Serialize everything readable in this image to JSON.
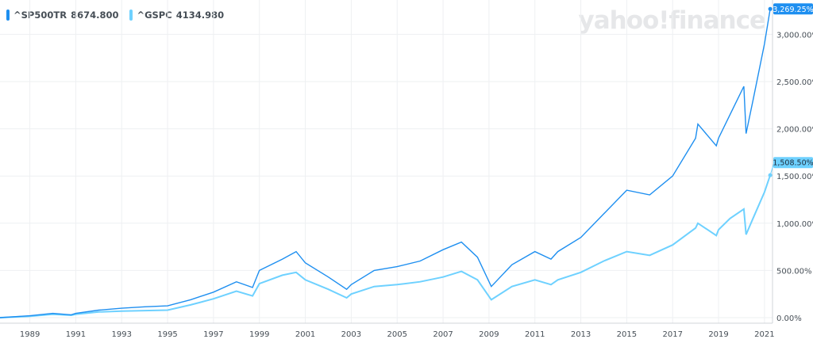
{
  "logo": "yahoo!finance",
  "chart_data": {
    "type": "line",
    "xlabel": "",
    "ylabel": "",
    "x_ticks": [
      "1989",
      "1991",
      "1993",
      "1995",
      "1997",
      "1999",
      "2001",
      "2003",
      "2005",
      "2007",
      "2009",
      "2011",
      "2013",
      "2015",
      "2017",
      "2019",
      "2021"
    ],
    "y_ticks": [
      "0.00%",
      "500.00%",
      "1,000.00%",
      "1,500.00%",
      "2,000.00%",
      "2,500.00%",
      "3,000.00%"
    ],
    "y_tick_values": [
      0,
      500,
      1000,
      1500,
      2000,
      2500,
      3000
    ],
    "xlim": [
      1987.7,
      2021.35
    ],
    "ylim": [
      -60,
      3350
    ],
    "grid": true,
    "legend_placement": "top-left",
    "series": [
      {
        "name": "^SP500TR",
        "legend_value": "8674.800",
        "end_label": "3,269.25%",
        "color": "#1e8ff0",
        "x": [
          1987.7,
          1989,
          1990,
          1990.8,
          1991,
          1992,
          1993,
          1994,
          1995,
          1996,
          1997,
          1998,
          1998.7,
          1999,
          2000,
          2000.6,
          2001,
          2002,
          2002.8,
          2003,
          2004,
          2005,
          2006,
          2007,
          2007.8,
          2008.5,
          2009.1,
          2010,
          2011,
          2011.7,
          2012,
          2013,
          2014,
          2015,
          2016,
          2017,
          2018,
          2018.1,
          2018.9,
          2019,
          2019.5,
          2020.1,
          2020.2,
          2020.5,
          2021,
          2021.25
        ],
        "y": [
          0,
          20,
          45,
          30,
          45,
          80,
          100,
          115,
          125,
          190,
          270,
          380,
          320,
          500,
          620,
          700,
          580,
          430,
          300,
          350,
          500,
          540,
          600,
          720,
          800,
          640,
          330,
          560,
          700,
          620,
          700,
          850,
          1100,
          1350,
          1300,
          1500,
          1900,
          2050,
          1820,
          1900,
          2150,
          2450,
          1950,
          2300,
          2900,
          3269.25
        ]
      },
      {
        "name": "^GSPC",
        "legend_value": "4134.980",
        "end_label": "1,508.50%",
        "color": "#6ed1ff",
        "x": [
          1987.7,
          1989,
          1990,
          1990.8,
          1991,
          1992,
          1993,
          1994,
          1995,
          1996,
          1997,
          1998,
          1998.7,
          1999,
          2000,
          2000.6,
          2001,
          2002,
          2002.8,
          2003,
          2004,
          2005,
          2006,
          2007,
          2007.8,
          2008.5,
          2009.1,
          2010,
          2011,
          2011.7,
          2012,
          2013,
          2014,
          2015,
          2016,
          2017,
          2018,
          2018.1,
          2018.9,
          2019,
          2019.5,
          2020.1,
          2020.2,
          2020.5,
          2021,
          2021.25
        ],
        "y": [
          0,
          15,
          35,
          25,
          35,
          60,
          70,
          75,
          80,
          135,
          200,
          280,
          230,
          360,
          450,
          480,
          400,
          300,
          210,
          250,
          330,
          350,
          380,
          430,
          490,
          400,
          190,
          330,
          400,
          350,
          400,
          480,
          600,
          700,
          660,
          770,
          950,
          1000,
          870,
          930,
          1050,
          1150,
          880,
          1050,
          1330,
          1508.5
        ]
      }
    ]
  }
}
